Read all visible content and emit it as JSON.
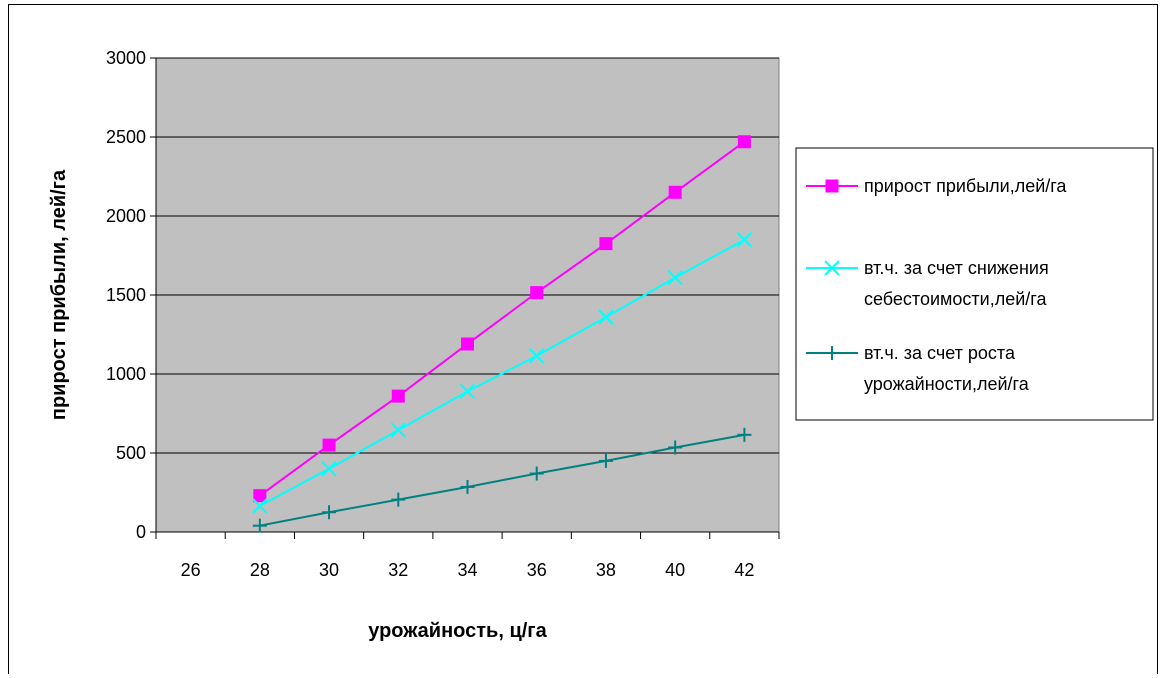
{
  "chart_data": {
    "type": "line",
    "title": "",
    "xlabel": "урожайность, ц/га",
    "ylabel": "прирост прибыли, лей/га",
    "categories": [
      "26",
      "28",
      "30",
      "32",
      "34",
      "36",
      "38",
      "40",
      "42"
    ],
    "ylim": [
      0,
      3000
    ],
    "yticks": [
      0,
      500,
      1000,
      1500,
      2000,
      2500,
      3000
    ],
    "grid": true,
    "legend_position": "right",
    "plot_background": "#c0c0c0",
    "series": [
      {
        "name": "прирост прибыли,лей/га",
        "legend_lines": [
          "прирост прибыли,лей/га"
        ],
        "color": "#ff00ff",
        "marker": "square",
        "x": [
          "28",
          "30",
          "32",
          "34",
          "36",
          "38",
          "40",
          "42"
        ],
        "values": [
          230,
          550,
          860,
          1190,
          1515,
          1825,
          2150,
          2470
        ]
      },
      {
        "name": "вт.ч. за счет снижения себестоимости,лей/га",
        "legend_lines": [
          "вт.ч. за счет снижения",
          "себестоимости,лей/га"
        ],
        "color": "#00ffff",
        "marker": "x",
        "x": [
          "28",
          "30",
          "32",
          "34",
          "36",
          "38",
          "40",
          "42"
        ],
        "values": [
          165,
          400,
          645,
          890,
          1115,
          1360,
          1610,
          1850
        ]
      },
      {
        "name": "вт.ч. за счет роста урожайности,лей/га",
        "legend_lines": [
          "вт.ч. за счет роста",
          "урожайности,лей/га"
        ],
        "color": "#008080",
        "marker": "plus",
        "x": [
          "28",
          "30",
          "32",
          "34",
          "36",
          "38",
          "40",
          "42"
        ],
        "values": [
          40,
          125,
          205,
          285,
          370,
          450,
          535,
          615
        ]
      }
    ]
  }
}
